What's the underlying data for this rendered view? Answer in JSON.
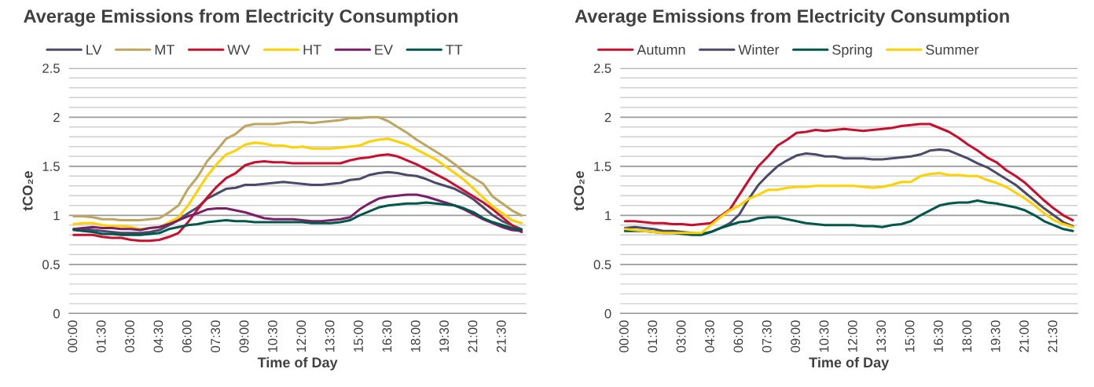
{
  "chart_data": [
    {
      "type": "line",
      "title": "Average Emissions from Electricity Consumption",
      "xlabel": "Time of Day",
      "ylabel": "tCO₂e",
      "categories": [
        "00:00",
        null,
        null,
        "01:30",
        null,
        null,
        "03:00",
        null,
        null,
        "04:30",
        null,
        null,
        "06:00",
        null,
        null,
        "07:30",
        null,
        null,
        "09:00",
        null,
        null,
        "10:30",
        null,
        null,
        "12:00",
        null,
        null,
        "13:30",
        null,
        null,
        "15:00",
        null,
        null,
        "16:30",
        null,
        null,
        "18:00",
        null,
        null,
        "19:30",
        null,
        null,
        "21:00",
        null,
        null,
        "21:30",
        null,
        null
      ],
      "series": [
        {
          "name": "LV",
          "color": "#4b4a6b",
          "values": [
            0.86,
            0.86,
            0.85,
            0.84,
            0.83,
            0.82,
            0.82,
            0.82,
            0.83,
            0.85,
            0.9,
            0.95,
            1.02,
            1.08,
            1.17,
            1.22,
            1.27,
            1.28,
            1.31,
            1.31,
            1.32,
            1.33,
            1.34,
            1.33,
            1.32,
            1.31,
            1.31,
            1.32,
            1.33,
            1.36,
            1.37,
            1.41,
            1.43,
            1.44,
            1.43,
            1.41,
            1.4,
            1.37,
            1.33,
            1.3,
            1.27,
            1.22,
            1.16,
            1.08,
            1.0,
            0.94,
            0.9,
            0.86
          ]
        },
        {
          "name": "MT",
          "color": "#bfa660",
          "values": [
            0.99,
            0.99,
            0.98,
            0.96,
            0.96,
            0.95,
            0.95,
            0.95,
            0.96,
            0.97,
            1.03,
            1.1,
            1.27,
            1.39,
            1.55,
            1.66,
            1.78,
            1.83,
            1.91,
            1.93,
            1.93,
            1.93,
            1.94,
            1.95,
            1.95,
            1.94,
            1.95,
            1.96,
            1.97,
            1.99,
            1.99,
            2.0,
            2.0,
            1.96,
            1.9,
            1.84,
            1.77,
            1.71,
            1.65,
            1.59,
            1.52,
            1.44,
            1.38,
            1.32,
            1.19,
            1.12,
            1.05,
            1.0
          ]
        },
        {
          "name": "WV",
          "color": "#c8102e",
          "values": [
            0.8,
            0.8,
            0.8,
            0.78,
            0.77,
            0.77,
            0.75,
            0.74,
            0.74,
            0.75,
            0.78,
            0.82,
            0.93,
            1.06,
            1.18,
            1.29,
            1.38,
            1.43,
            1.51,
            1.54,
            1.55,
            1.54,
            1.54,
            1.53,
            1.53,
            1.53,
            1.53,
            1.53,
            1.53,
            1.56,
            1.58,
            1.59,
            1.61,
            1.62,
            1.6,
            1.56,
            1.52,
            1.47,
            1.42,
            1.37,
            1.31,
            1.25,
            1.19,
            1.13,
            1.06,
            0.98,
            0.9,
            0.83
          ]
        },
        {
          "name": "HT",
          "color": "#ffd100",
          "values": [
            0.91,
            0.92,
            0.92,
            0.9,
            0.89,
            0.89,
            0.88,
            0.86,
            0.87,
            0.88,
            0.93,
            0.98,
            1.1,
            1.25,
            1.4,
            1.52,
            1.62,
            1.66,
            1.72,
            1.74,
            1.73,
            1.71,
            1.71,
            1.69,
            1.7,
            1.68,
            1.68,
            1.68,
            1.69,
            1.7,
            1.71,
            1.75,
            1.77,
            1.78,
            1.75,
            1.72,
            1.67,
            1.62,
            1.57,
            1.5,
            1.43,
            1.36,
            1.27,
            1.18,
            1.09,
            1.02,
            0.95,
            0.92
          ]
        },
        {
          "name": "EV",
          "color": "#7b2068",
          "values": [
            0.86,
            0.87,
            0.88,
            0.87,
            0.87,
            0.86,
            0.86,
            0.85,
            0.87,
            0.88,
            0.91,
            0.95,
            0.99,
            1.02,
            1.06,
            1.07,
            1.07,
            1.05,
            1.03,
            1.0,
            0.97,
            0.96,
            0.96,
            0.96,
            0.95,
            0.94,
            0.94,
            0.95,
            0.96,
            0.98,
            1.06,
            1.12,
            1.17,
            1.19,
            1.2,
            1.21,
            1.21,
            1.19,
            1.16,
            1.13,
            1.1,
            1.06,
            1.01,
            0.96,
            0.92,
            0.88,
            0.85,
            0.84
          ]
        },
        {
          "name": "TT",
          "color": "#00574b",
          "values": [
            0.85,
            0.84,
            0.83,
            0.81,
            0.81,
            0.8,
            0.8,
            0.8,
            0.81,
            0.82,
            0.86,
            0.88,
            0.9,
            0.91,
            0.93,
            0.94,
            0.95,
            0.94,
            0.94,
            0.93,
            0.93,
            0.93,
            0.93,
            0.93,
            0.93,
            0.92,
            0.92,
            0.92,
            0.93,
            0.95,
            1.0,
            1.04,
            1.08,
            1.1,
            1.11,
            1.12,
            1.12,
            1.13,
            1.12,
            1.11,
            1.1,
            1.07,
            1.03,
            0.97,
            0.93,
            0.9,
            0.87,
            0.85
          ]
        }
      ],
      "ylim": [
        0,
        2.5
      ],
      "yticks": [
        0,
        {
          "value": 0.1,
          "label": null
        },
        {
          "value": 0.2,
          "label": null
        },
        {
          "value": 0.3,
          "label": null
        },
        {
          "value": 0.4,
          "label": null
        },
        0.5,
        {
          "value": 0.6,
          "label": null
        },
        {
          "value": 0.7,
          "label": null
        },
        {
          "value": 0.8,
          "label": null
        },
        {
          "value": 0.9,
          "label": null
        },
        1,
        {
          "value": 1.1,
          "label": null
        },
        {
          "value": 1.2,
          "label": null
        },
        {
          "value": 1.3,
          "label": null
        },
        {
          "value": 1.4,
          "label": null
        },
        1.5,
        {
          "value": 1.6,
          "label": null
        },
        {
          "value": 1.7,
          "label": null
        },
        {
          "value": 1.8,
          "label": null
        },
        {
          "value": 1.9,
          "label": null
        },
        2,
        {
          "value": 2.1,
          "label": null
        },
        {
          "value": 2.2,
          "label": null
        },
        {
          "value": 2.3,
          "label": null
        },
        {
          "value": 2.4,
          "label": null
        },
        2.5
      ],
      "grid": "y",
      "legend": "top left",
      "marker": "none",
      "line_style": "solid"
    },
    {
      "type": "line",
      "title": "Average Emissions from Electricity Consumption",
      "xlabel": "Time of Day",
      "ylabel": "tCO₂e",
      "categories": [
        "00:00",
        null,
        null,
        "01:30",
        null,
        null,
        "03:00",
        null,
        null,
        "04:30",
        null,
        null,
        "06:00",
        null,
        null,
        "07:30",
        null,
        null,
        "09:00",
        null,
        null,
        "10:30",
        null,
        null,
        "12:00",
        null,
        null,
        "13:30",
        null,
        null,
        "15:00",
        null,
        null,
        "16:30",
        null,
        null,
        "18:00",
        null,
        null,
        "19:30",
        null,
        null,
        "21:00",
        null,
        null,
        "21:30",
        null,
        null
      ],
      "series": [
        {
          "name": "Autumn",
          "color": "#c8102e",
          "values": [
            0.94,
            0.94,
            0.93,
            0.92,
            0.92,
            0.91,
            0.91,
            0.9,
            0.91,
            0.92,
            0.99,
            1.06,
            1.21,
            1.36,
            1.5,
            1.6,
            1.71,
            1.77,
            1.84,
            1.85,
            1.87,
            1.86,
            1.87,
            1.88,
            1.87,
            1.86,
            1.87,
            1.88,
            1.89,
            1.91,
            1.92,
            1.93,
            1.93,
            1.89,
            1.85,
            1.79,
            1.72,
            1.66,
            1.59,
            1.54,
            1.46,
            1.4,
            1.33,
            1.24,
            1.15,
            1.07,
            1.0,
            0.95
          ]
        },
        {
          "name": "Winter",
          "color": "#4b4a6b",
          "values": [
            0.87,
            0.88,
            0.87,
            0.86,
            0.84,
            0.84,
            0.83,
            0.82,
            0.81,
            0.83,
            0.87,
            0.92,
            1.01,
            1.17,
            1.31,
            1.41,
            1.5,
            1.56,
            1.61,
            1.63,
            1.62,
            1.6,
            1.6,
            1.58,
            1.58,
            1.58,
            1.57,
            1.57,
            1.58,
            1.59,
            1.6,
            1.62,
            1.66,
            1.67,
            1.66,
            1.62,
            1.58,
            1.53,
            1.49,
            1.43,
            1.37,
            1.31,
            1.23,
            1.15,
            1.07,
            1.0,
            0.93,
            0.89
          ]
        },
        {
          "name": "Spring",
          "color": "#00574b",
          "values": [
            0.84,
            0.84,
            0.84,
            0.83,
            0.82,
            0.82,
            0.81,
            0.8,
            0.8,
            0.83,
            0.87,
            0.9,
            0.93,
            0.94,
            0.97,
            0.98,
            0.98,
            0.96,
            0.94,
            0.92,
            0.91,
            0.9,
            0.9,
            0.9,
            0.9,
            0.89,
            0.89,
            0.88,
            0.9,
            0.91,
            0.94,
            1.0,
            1.05,
            1.1,
            1.12,
            1.13,
            1.13,
            1.15,
            1.13,
            1.12,
            1.1,
            1.08,
            1.05,
            1.0,
            0.94,
            0.9,
            0.86,
            0.84
          ]
        },
        {
          "name": "Summer",
          "color": "#ffd100",
          "values": [
            0.86,
            0.85,
            0.84,
            0.83,
            0.82,
            0.82,
            0.82,
            0.82,
            0.82,
            0.9,
            0.98,
            1.05,
            1.1,
            1.17,
            1.21,
            1.26,
            1.26,
            1.28,
            1.29,
            1.29,
            1.3,
            1.3,
            1.3,
            1.3,
            1.3,
            1.29,
            1.28,
            1.29,
            1.31,
            1.34,
            1.34,
            1.4,
            1.42,
            1.43,
            1.41,
            1.41,
            1.4,
            1.4,
            1.36,
            1.33,
            1.29,
            1.23,
            1.17,
            1.1,
            1.02,
            0.95,
            0.91,
            0.88
          ]
        }
      ],
      "ylim": [
        0,
        2.5
      ],
      "yticks": [
        0,
        {
          "value": 0.1,
          "label": null
        },
        {
          "value": 0.2,
          "label": null
        },
        {
          "value": 0.3,
          "label": null
        },
        {
          "value": 0.4,
          "label": null
        },
        0.5,
        {
          "value": 0.6,
          "label": null
        },
        {
          "value": 0.7,
          "label": null
        },
        {
          "value": 0.8,
          "label": null
        },
        {
          "value": 0.9,
          "label": null
        },
        1,
        {
          "value": 1.1,
          "label": null
        },
        {
          "value": 1.2,
          "label": null
        },
        {
          "value": 1.3,
          "label": null
        },
        {
          "value": 1.4,
          "label": null
        },
        1.5,
        {
          "value": 1.6,
          "label": null
        },
        {
          "value": 1.7,
          "label": null
        },
        {
          "value": 1.8,
          "label": null
        },
        {
          "value": 1.9,
          "label": null
        },
        2,
        {
          "value": 2.1,
          "label": null
        },
        {
          "value": 2.2,
          "label": null
        },
        {
          "value": 2.3,
          "label": null
        },
        {
          "value": 2.4,
          "label": null
        },
        2.5
      ],
      "grid": "y",
      "legend": "top left",
      "marker": "none",
      "line_style": "solid"
    }
  ]
}
